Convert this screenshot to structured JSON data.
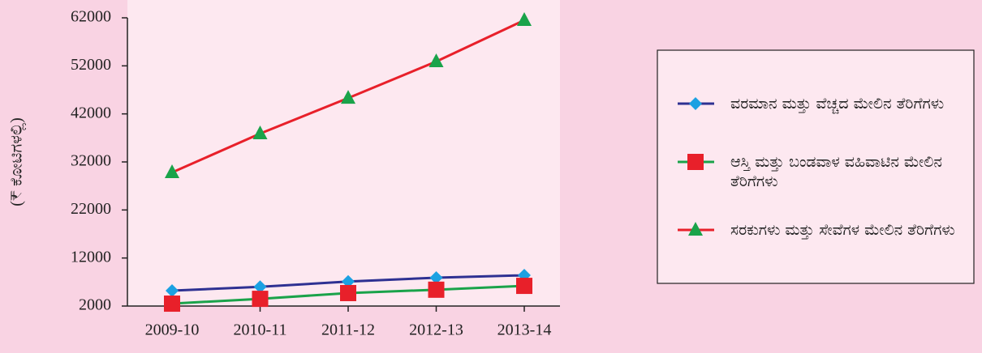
{
  "chart_data": {
    "type": "line",
    "ylabel": "(₹ ಕೋಟಿಗಳಲ್ಲಿ)",
    "categories": [
      "2009-10",
      "2010-11",
      "2011-12",
      "2012-13",
      "2013-14"
    ],
    "series": [
      {
        "name": "ವರಮಾನ ಮತ್ತು ವೆಚ್ಚದ ಮೇಲಿನ ತೆರಿಗೆಗಳು",
        "color": "#2e3192",
        "marker_color": "#1ba1e2",
        "marker": "diamond",
        "values": [
          5200,
          6000,
          7100,
          7900,
          8400
        ]
      },
      {
        "name": "ಆಸ್ತಿ ಮತ್ತು ಬಂಡವಾಳ ವಹಿವಾಟಿನ ಮೇಲಿನ ತೆರಿಗೆಗಳು",
        "color": "#1aa34a",
        "marker_color": "#e8202a",
        "marker": "square",
        "values": [
          2500,
          3500,
          4700,
          5400,
          6200
        ]
      },
      {
        "name": "ಸರಕುಗಳು ಮತ್ತು ಸೇವೆಗಳ ಮೇಲಿನ ತೆರಿಗೆಗಳು",
        "color": "#e8202a",
        "marker_color": "#1aa34a",
        "marker": "triangle",
        "values": [
          29800,
          37900,
          45300,
          52900,
          61500
        ]
      }
    ],
    "ylim": [
      2000,
      62000
    ],
    "yticks": [
      2000,
      12000,
      22000,
      32000,
      42000,
      52000,
      62000
    ],
    "grid": false,
    "legend": "right"
  }
}
